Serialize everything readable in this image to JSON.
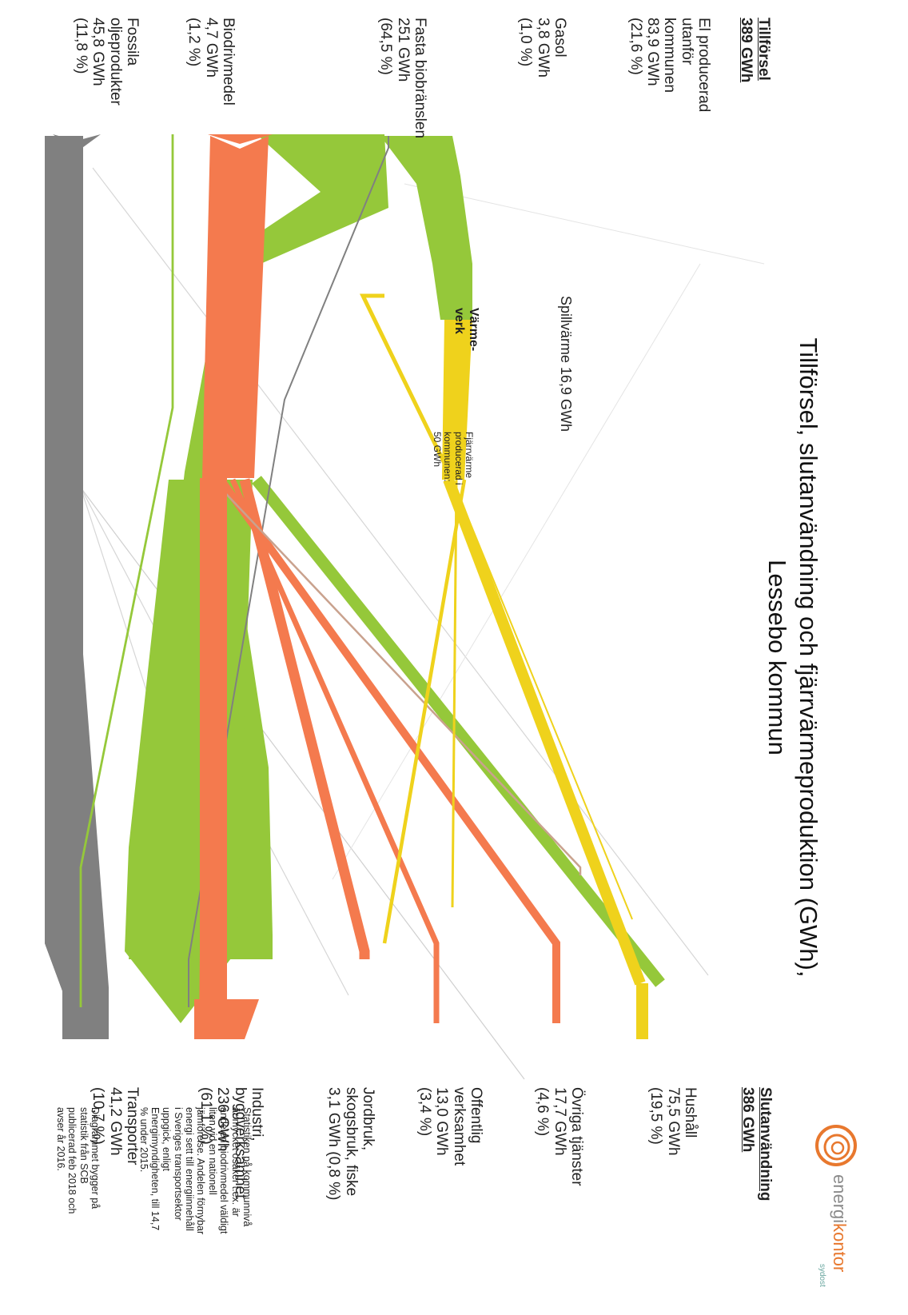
{
  "title_line1": "Tillförsel, slutanvändning och fjärrvärmeproduktion (GWh),",
  "title_line2": "Lessebo kommun",
  "supply": {
    "header": "Tillförsel",
    "total": "389 GWh",
    "items": [
      {
        "label": "El producerad\nutanför\nkommunen\n83,9 GWh\n(21,6 %)",
        "value": 83.9,
        "color": "#f47a4e"
      },
      {
        "label": "Gasol\n3,8 GWh\n(1,0 %)",
        "value": 3.8,
        "color": "#808080"
      },
      {
        "label": "Fasta biobränslen\n251 GWh\n(64,5 %)",
        "value": 251,
        "color": "#95c83a"
      },
      {
        "label": "Biodrivmedel\n4,7 GWh\n(1,2 %)",
        "value": 4.7,
        "color": "#95c83a"
      },
      {
        "label": "Fossila\noljeprodukter\n45,8 GWh\n(11,8 %)",
        "value": 45.8,
        "color": "#808080"
      }
    ]
  },
  "end_use": {
    "header": "Slutanvändning",
    "total": "386 GWh",
    "items": [
      {
        "label": "Hushåll\n75,5 GWh\n(19,5 %)",
        "value": 75.5
      },
      {
        "label": "Övriga tjänster\n17,7 GWh\n(4,6 %)",
        "value": 17.7
      },
      {
        "label": "Offentlig\nverksamhet\n13,0 GWh\n(3,4 %)",
        "value": 13.0
      },
      {
        "label": "Jordbruk,\nskogsbruk, fiske\n3,1 GWh (0,8 %)",
        "value": 3.1
      },
      {
        "label": "Industri,\nbyggverksamhet\n236 GWh\n(61,1 %)",
        "value": 236
      },
      {
        "label": "Transporter\n41,2 GWh\n(10,7 %)",
        "value": 41.2
      }
    ]
  },
  "spillvarme_label": "Spillvärme 16,9 GWh",
  "varmeverk_label": "Värme-\nverk",
  "fjarrvarme_label": "Fjärrvärme\nproducerad i\nkommunen:\n50 GWh",
  "note_biofuel": "Statistiken på kommunnivå\när mycket osäker t.ex. är\nandelen biodrivmedel väldigt\nliten vid en nationell\njämförelse. Andelen förnybar\nenergi sett till energiinnehåll\ni Sveriges transportsektor\nuppgick, enligt\nEnergimyndigheten, till 14,7\n% under 2015.",
  "note_source": "Diagrammet bygger på\nstatistik från SCB\npublicerad feb 2018 och\navser år 2016.",
  "logo": {
    "part1": "energi",
    "part2": "kontor",
    "sub": "sydost"
  },
  "colors": {
    "electricity": "#f47a4e",
    "biomass": "#95c83a",
    "district_heat": "#efd21c",
    "fossil": "#808080",
    "agri": "#c9a28e"
  }
}
